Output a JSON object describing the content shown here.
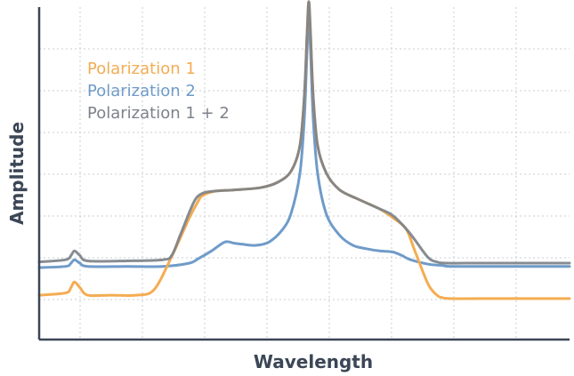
{
  "chart_data": {
    "type": "line",
    "title": "",
    "xlabel": "Wavelength",
    "ylabel": "Amplitude",
    "xlim": [
      0,
      600
    ],
    "ylim": [
      0,
      300
    ],
    "grid": true,
    "legend_position": "top-left",
    "colors": {
      "Polarization 1": "#f4ac52",
      "Polarization 2": "#6f9bc9",
      "Polarization 1 + 2": "#7d828a",
      "axis": "#3b4656",
      "axis_title": "#3b4656",
      "grid": "#c9cdd2"
    },
    "series": [
      {
        "name": "Polarization 1",
        "x": [
          0,
          30,
          36,
          40,
          46,
          55,
          80,
          110,
          130,
          150,
          170,
          180,
          185,
          200,
          220,
          250,
          270,
          285,
          295,
          300,
          303,
          305,
          307,
          310,
          315,
          325,
          340,
          360,
          385,
          400,
          415,
          425,
          440,
          450,
          455,
          465,
          500,
          560,
          600
        ],
        "y": [
          40,
          42,
          47,
          52,
          47,
          40,
          40,
          40,
          45,
          75,
          110,
          125,
          130,
          134,
          135,
          137,
          142,
          152,
          175,
          220,
          275,
          305,
          275,
          220,
          175,
          150,
          135,
          127,
          118,
          110,
          100,
          80,
          50,
          40,
          38,
          37,
          37,
          37,
          37
        ]
      },
      {
        "name": "Polarization 2",
        "x": [
          0,
          30,
          36,
          40,
          46,
          55,
          100,
          140,
          170,
          180,
          195,
          210,
          220,
          230,
          245,
          260,
          275,
          285,
          295,
          300,
          303,
          305,
          307,
          310,
          315,
          325,
          340,
          355,
          370,
          385,
          400,
          410,
          420,
          440,
          455,
          465,
          500,
          560,
          600
        ],
        "y": [
          65,
          66,
          69,
          72,
          69,
          66,
          66,
          66,
          69,
          73,
          80,
          88,
          87,
          86,
          85,
          88,
          99,
          114,
          150,
          200,
          260,
          290,
          260,
          200,
          150,
          113,
          94,
          85,
          82,
          80,
          79,
          76,
          72,
          68,
          67,
          66,
          66,
          66,
          66
        ]
      },
      {
        "name": "Polarization 1 + 2",
        "x": [
          0,
          30,
          36,
          40,
          46,
          55,
          100,
          140,
          150,
          160,
          175,
          185,
          200,
          220,
          250,
          270,
          285,
          295,
          300,
          303,
          305,
          307,
          310,
          315,
          325,
          340,
          360,
          385,
          400,
          415,
          425,
          440,
          450,
          460,
          500,
          560,
          600
        ],
        "y": [
          70,
          72,
          76,
          80,
          76,
          71,
          71,
          72,
          76,
          95,
          124,
          132,
          134,
          135,
          137,
          142,
          152,
          175,
          220,
          275,
          305,
          275,
          220,
          175,
          150,
          135,
          127,
          118,
          112,
          100,
          90,
          74,
          70,
          69,
          69,
          69,
          69
        ]
      }
    ],
    "legend": [
      {
        "label": "Polarization 1"
      },
      {
        "label": "Polarization 2"
      },
      {
        "label": "Polarization 1 + 2"
      }
    ]
  }
}
